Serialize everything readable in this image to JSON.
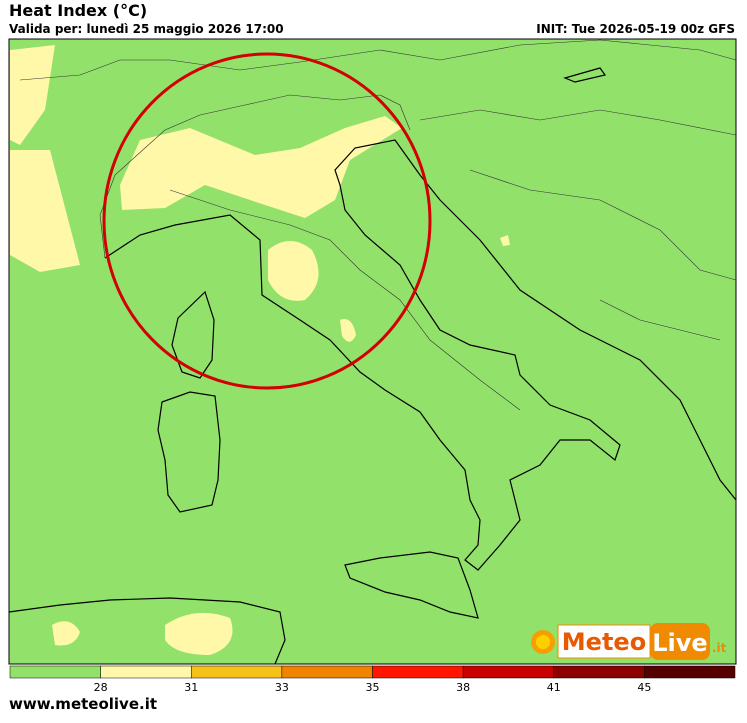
{
  "header": {
    "title": "Heat Index (°C)",
    "valid": "Valida per: lunedì 25 maggio 2026 17:00",
    "init": "INIT: Tue 2026-05-19 00z GFS"
  },
  "legend": {
    "colors": [
      "#92e16b",
      "#fff8a8",
      "#f5c21a",
      "#f08300",
      "#ff1500",
      "#c80000",
      "#8c0000",
      "#560000"
    ],
    "ticks": [
      28,
      31,
      33,
      35,
      38,
      41,
      45
    ]
  },
  "footer": {
    "site": "www.meteolive.it"
  },
  "logo": {
    "part1": "Meteo",
    "part2": "Live",
    "suffix": ".it"
  }
}
